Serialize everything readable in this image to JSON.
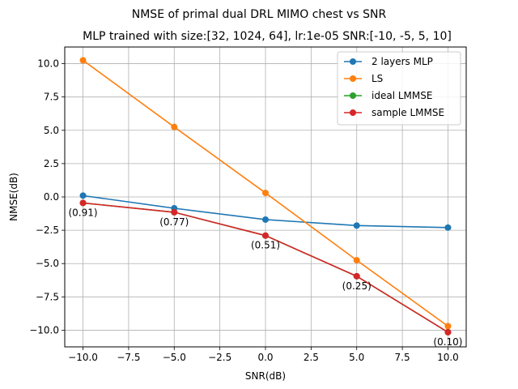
{
  "chart_data": {
    "type": "line",
    "title": "NMSE of primal dual DRL MIMO chest vs SNR",
    "subtitle": "MLP trained with size:[32, 1024, 64], lr:1e-05 SNR:[-10, -5, 5, 10]",
    "xlabel": "SNR(dB)",
    "ylabel": "NMSE(dB)",
    "xlim": [
      -11,
      11
    ],
    "ylim": [
      -11.25,
      11.25
    ],
    "xticks": [
      -10,
      -7.5,
      -5,
      -2.5,
      0,
      2.5,
      5,
      7.5,
      10
    ],
    "xtick_labels": [
      "−10.0",
      "−7.5",
      "−5.0",
      "−2.5",
      "0.0",
      "2.5",
      "5.0",
      "7.5",
      "10.0"
    ],
    "yticks": [
      10,
      7.5,
      5,
      2.5,
      0,
      -2.5,
      -5,
      -7.5,
      -10
    ],
    "ytick_labels": [
      "10.0",
      "7.5",
      "5.0",
      "2.5",
      "0.0",
      "−2.5",
      "−5.0",
      "−7.5",
      "−10.0"
    ],
    "grid": true,
    "legend_position": "top-right",
    "x": [
      -10,
      -5,
      0,
      5,
      10
    ],
    "series": [
      {
        "name": "2 layers MLP",
        "color": "#1f77b4",
        "values": [
          0.1,
          -0.85,
          -1.7,
          -2.15,
          -2.3
        ]
      },
      {
        "name": "LS",
        "color": "#ff7f0e",
        "values": [
          10.25,
          5.25,
          0.3,
          -4.75,
          -9.7
        ]
      },
      {
        "name": "ideal LMMSE",
        "color": "#2ca02c",
        "values": [
          -0.45,
          -1.15,
          -2.9,
          -5.95,
          -10.15
        ]
      },
      {
        "name": "sample LMMSE",
        "color": "#d62728",
        "values": [
          -0.45,
          -1.15,
          -2.9,
          -5.95,
          -10.15
        ]
      }
    ],
    "annotations": [
      {
        "text": "(0.91)",
        "x": -10,
        "y": -0.45
      },
      {
        "text": "(0.77)",
        "x": -5,
        "y": -1.15
      },
      {
        "text": "(0.51)",
        "x": 0,
        "y": -2.9
      },
      {
        "text": "(0.25)",
        "x": 5,
        "y": -5.95
      },
      {
        "text": "(0.10)",
        "x": 10,
        "y": -10.15
      }
    ]
  }
}
